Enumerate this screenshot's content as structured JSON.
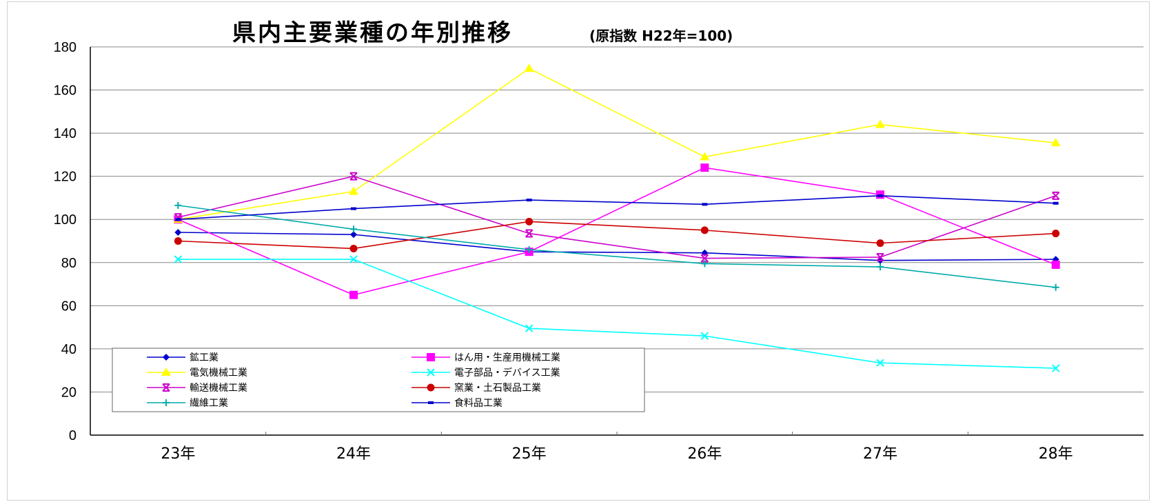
{
  "chart_data": {
    "type": "line",
    "title": "県内主要業種の年別推移",
    "subtitle": "(原指数 H22年=100)",
    "categories": [
      "23年",
      "24年",
      "25年",
      "26年",
      "27年",
      "28年"
    ],
    "ylim": [
      0,
      180
    ],
    "yticks": [
      0,
      20,
      40,
      60,
      80,
      100,
      120,
      140,
      160,
      180
    ],
    "grid": true,
    "legend_position": "bottom-left",
    "series": [
      {
        "name": "鉱工業",
        "color": "#0000cc",
        "marker": "diamond",
        "values": [
          94,
          93,
          85,
          84.5,
          81,
          81.5
        ]
      },
      {
        "name": "はん用・生産用機械工業",
        "color": "#ff00ff",
        "marker": "square",
        "values": [
          100,
          65,
          85,
          124,
          111.5,
          79
        ]
      },
      {
        "name": "電気機械工業",
        "color": "#ffff00",
        "marker": "triangle",
        "values": [
          100,
          113,
          170,
          129,
          144,
          135.5
        ]
      },
      {
        "name": "電子部品・デバイス工業",
        "color": "#00ffff",
        "marker": "x",
        "values": [
          81.5,
          81.5,
          49.5,
          46,
          33.5,
          31
        ]
      },
      {
        "name": "輸送機械工業",
        "color": "#cc00cc",
        "marker": "xbar",
        "values": [
          101,
          120,
          93.5,
          82,
          82.5,
          111
        ]
      },
      {
        "name": "窯業・土石製品工業",
        "color": "#cc0000",
        "marker": "circle",
        "values": [
          90,
          86.5,
          99,
          95,
          89,
          93.5
        ]
      },
      {
        "name": "繊維工業",
        "color": "#00aaaa",
        "marker": "plus",
        "values": [
          106.5,
          95.5,
          86,
          79.5,
          78,
          68.5
        ]
      },
      {
        "name": "食料品工業",
        "color": "#0000cc",
        "marker": "dash",
        "values": [
          100,
          105,
          109,
          107,
          111,
          107.5
        ]
      }
    ]
  }
}
